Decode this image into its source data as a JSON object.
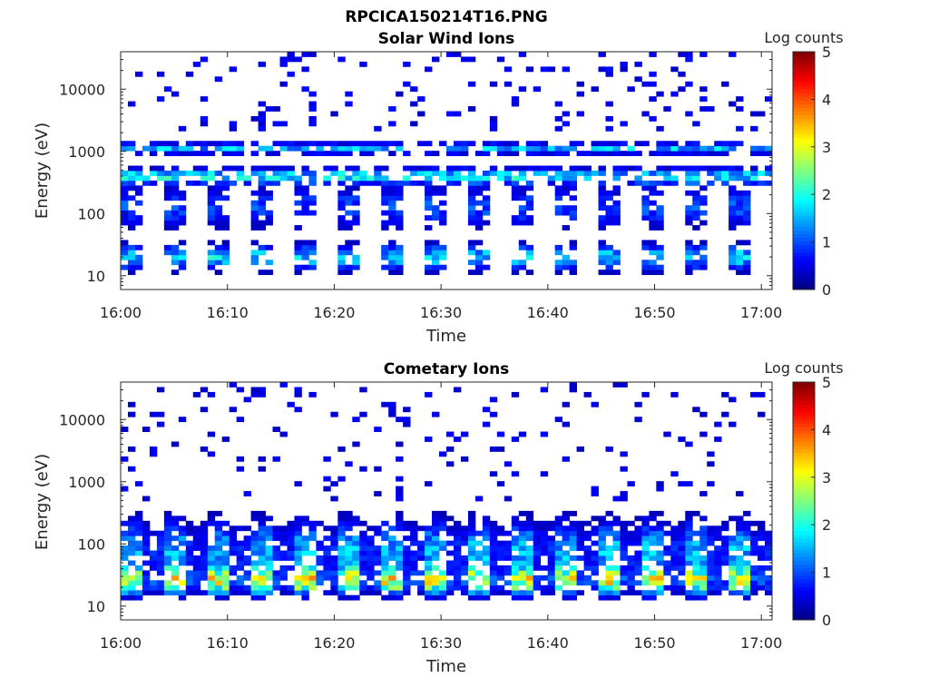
{
  "figure": {
    "title": "RPCICA150214T16.PNG"
  },
  "colorbar": {
    "label": "Log counts",
    "ticks": [
      "0",
      "1",
      "2",
      "3",
      "4",
      "5"
    ],
    "range": [
      0,
      5
    ],
    "colormap": "jet"
  },
  "chart_data": [
    {
      "type": "heatmap",
      "title": "Solar Wind Ions",
      "xlabel": "Time",
      "ylabel": "Energy (eV)",
      "x_ticks": [
        "16:00",
        "16:10",
        "16:20",
        "16:30",
        "16:40",
        "16:50",
        "17:00"
      ],
      "y_ticks": [
        "10",
        "100",
        "1000",
        "10000"
      ],
      "y_scale": "log",
      "x_range": [
        "16:00",
        "17:01"
      ],
      "y_range": [
        6,
        40000
      ],
      "value_range": [
        0,
        5
      ],
      "pattern": "solar-wind"
    },
    {
      "type": "heatmap",
      "title": "Cometary Ions",
      "xlabel": "Time",
      "ylabel": "Energy (eV)",
      "x_ticks": [
        "16:00",
        "16:10",
        "16:20",
        "16:30",
        "16:40",
        "16:50",
        "17:00"
      ],
      "y_ticks": [
        "10",
        "100",
        "1000",
        "10000"
      ],
      "y_scale": "log",
      "x_range": [
        "16:00",
        "17:01"
      ],
      "y_range": [
        6,
        40000
      ],
      "value_range": [
        0,
        5
      ],
      "pattern": "cometary"
    }
  ]
}
